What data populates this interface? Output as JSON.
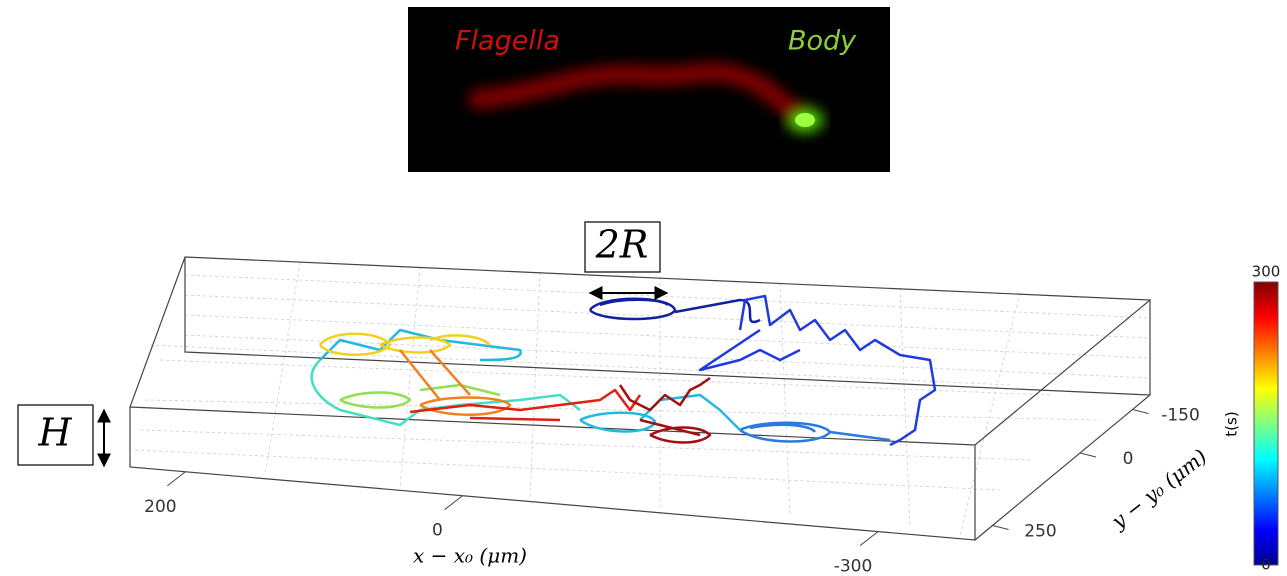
{
  "image": {
    "labels": [
      "Flagella",
      "Body"
    ]
  },
  "chart_data": {
    "type": "trajectory-3d",
    "annotations": [
      "2R",
      "H"
    ],
    "xlabel": "x − x₀ (μm)",
    "ylabel": "y − y₀ (μm)",
    "xlim": [
      240,
      -370
    ],
    "xticks": [
      200,
      0,
      -300
    ],
    "ylim": [
      300,
      -200
    ],
    "yticks": [
      -150,
      0,
      250
    ],
    "colorbar": {
      "label": "t(s)",
      "lim": [
        0,
        300
      ],
      "ticks": [
        0,
        300
      ]
    }
  }
}
